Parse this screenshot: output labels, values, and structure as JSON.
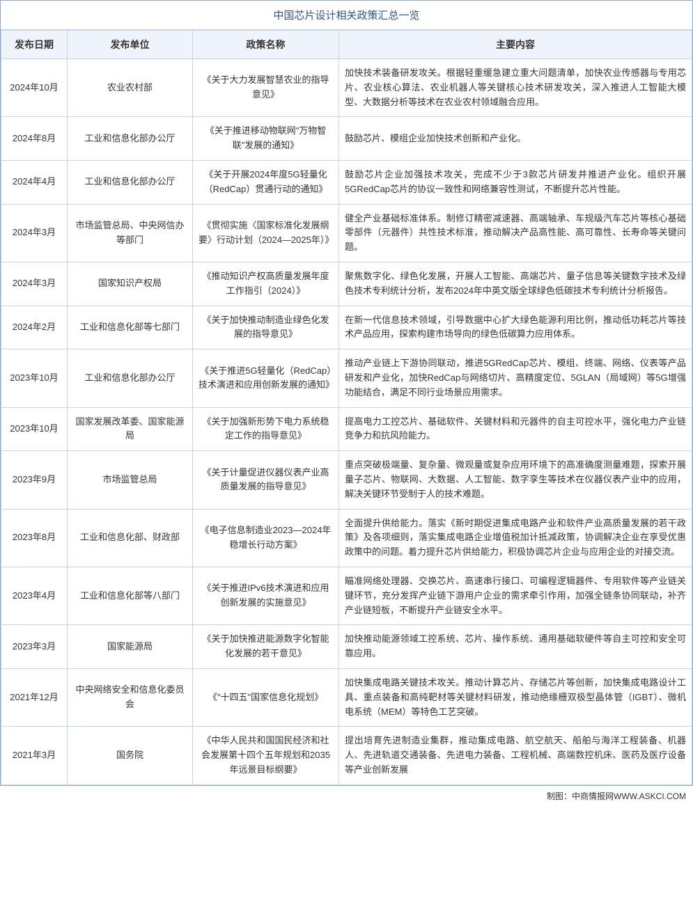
{
  "title": "中国芯片设计相关政策汇总一览",
  "headers": {
    "date": "发布日期",
    "department": "发布单位",
    "policy": "政策名称",
    "content": "主要内容"
  },
  "rows": [
    {
      "date": "2024年10月",
      "department": "农业农村部",
      "policy": "《关于大力发展智慧农业的指导意见》",
      "content": "加快技术装备研发攻关。根据轻重缓急建立重大问题清单，加快农业传感器与专用芯片、农业核心算法、农业机器人等关键核心技术研发攻关，深入推进人工智能大模型、大数据分析等技术在农业农村领域融合应用。"
    },
    {
      "date": "2024年8月",
      "department": "工业和信息化部办公厅",
      "policy": "《关于推进移动物联网\"万物智联\"发展的通知》",
      "content": "鼓励芯片、模组企业加快技术创新和产业化。"
    },
    {
      "date": "2024年4月",
      "department": "工业和信息化部办公厅",
      "policy": "《关于开展2024年度5G轻量化（RedCap）贯通行动的通知》",
      "content": "鼓励芯片企业加强技术攻关，完成不少于3款芯片研发并推进产业化。组织开展5GRedCap芯片的协议一致性和网络兼容性测试，不断提升芯片性能。"
    },
    {
      "date": "2024年3月",
      "department": "市场监管总局、中央网信办等部门",
      "policy": "《贯彻实施〈国家标准化发展纲要〉行动计划（2024—2025年）》",
      "content": "健全产业基础标准体系。制修订精密减速器、高端轴承、车规级汽车芯片等核心基础零部件（元器件）共性技术标准，推动解决产品高性能、高可靠性、长寿命等关键问题。"
    },
    {
      "date": "2024年3月",
      "department": "国家知识产权局",
      "policy": "《推动知识产权高质量发展年度工作指引（2024）》",
      "content": "聚焦数字化、绿色化发展，开展人工智能、高端芯片、量子信息等关键数字技术及绿色技术专利统计分析，发布2024年中英文版全球绿色低碳技术专利统计分析报告。"
    },
    {
      "date": "2024年2月",
      "department": "工业和信息化部等七部门",
      "policy": "《关于加快推动制造业绿色化发展的指导意见》",
      "content": "在新一代信息技术领域，引导数据中心扩大绿色能源利用比例，推动低功耗芯片等技术产品应用，探索构建市场导向的绿色低碳算力应用体系。"
    },
    {
      "date": "2023年10月",
      "department": "工业和信息化部办公厅",
      "policy": "《关于推进5G轻量化（RedCap）技术演进和应用创新发展的通知》",
      "content": "推动产业链上下游协同联动，推进5GRedCap芯片、模组、终端、网络、仪表等产品研发和产业化，加快RedCap与网络切片、高精度定位、5GLAN（局域网）等5G增强功能结合，满足不同行业场景应用需求。"
    },
    {
      "date": "2023年10月",
      "department": "国家发展改革委、国家能源局",
      "policy": "《关于加强新形势下电力系统稳定工作的指导意见》",
      "content": "提高电力工控芯片、基础软件、关键材料和元器件的自主可控水平，强化电力产业链竞争力和抗风险能力。"
    },
    {
      "date": "2023年9月",
      "department": "市场监管总局",
      "policy": "《关于计量促进仪器仪表产业高质量发展的指导意见》",
      "content": "重点突破极端量、复杂量、微观量或复杂应用环境下的高准确度测量难题，探索开展量子芯片、物联网、大数据、人工智能、数字孪生等技术在仪器仪表产业中的应用，解决关键环节受制于人的技术难题。"
    },
    {
      "date": "2023年8月",
      "department": "工业和信息化部、财政部",
      "policy": "《电子信息制造业2023—2024年稳增长行动方案》",
      "content": "全面提升供给能力。落实《新时期促进集成电路产业和软件产业高质量发展的若干政策》及各项细则，落实集成电路企业增值税加计抵减政策，协调解决企业在享受优惠政策中的问题。着力提升芯片供给能力，积极协调芯片企业与应用企业的对接交流。"
    },
    {
      "date": "2023年4月",
      "department": "工业和信息化部等八部门",
      "policy": "《关于推进IPv6技术演进和应用创新发展的实施意见》",
      "content": "瞄准网络处理器、交换芯片、高速串行接口、可编程逻辑器件、专用软件等产业链关键环节，充分发挥产业链下游用户企业的需求牵引作用，加强全链条协同联动，补齐产业链短板，不断提升产业链安全水平。"
    },
    {
      "date": "2023年3月",
      "department": "国家能源局",
      "policy": "《关于加快推进能源数字化智能化发展的若干意见》",
      "content": "加快推动能源领域工控系统、芯片、操作系统、通用基础软硬件等自主可控和安全可靠应用。"
    },
    {
      "date": "2021年12月",
      "department": "中央网络安全和信息化委员会",
      "policy": "《\"十四五\"国家信息化规划》",
      "content": "加快集成电路关键技术攻关。推动计算芯片、存储芯片等创新，加快集成电路设计工具、重点装备和高纯靶材等关键材料研发，推动绝缘栅双极型晶体管（IGBT）、微机电系统（MEM）等特色工艺突破。"
    },
    {
      "date": "2021年3月",
      "department": "国务院",
      "policy": "《中华人民共和国国民经济和社会发展第十四个五年规划和2035年远景目标纲要》",
      "content": "提出培育先进制造业集群，推动集成电路、航空航天、船舶与海洋工程装备、机器人、先进轨道交通装备、先进电力装备、工程机械、高端数控机床、医药及医疗设备等产业创新发展"
    }
  ],
  "footer": "制图：中商情报网WWW.ASKCI.COM",
  "colors": {
    "border": "#c5d4ea",
    "outer_border": "#8aa9d8",
    "header_bg": "#eff4fb",
    "title_color": "#2f5496",
    "text_color": "#333333"
  }
}
